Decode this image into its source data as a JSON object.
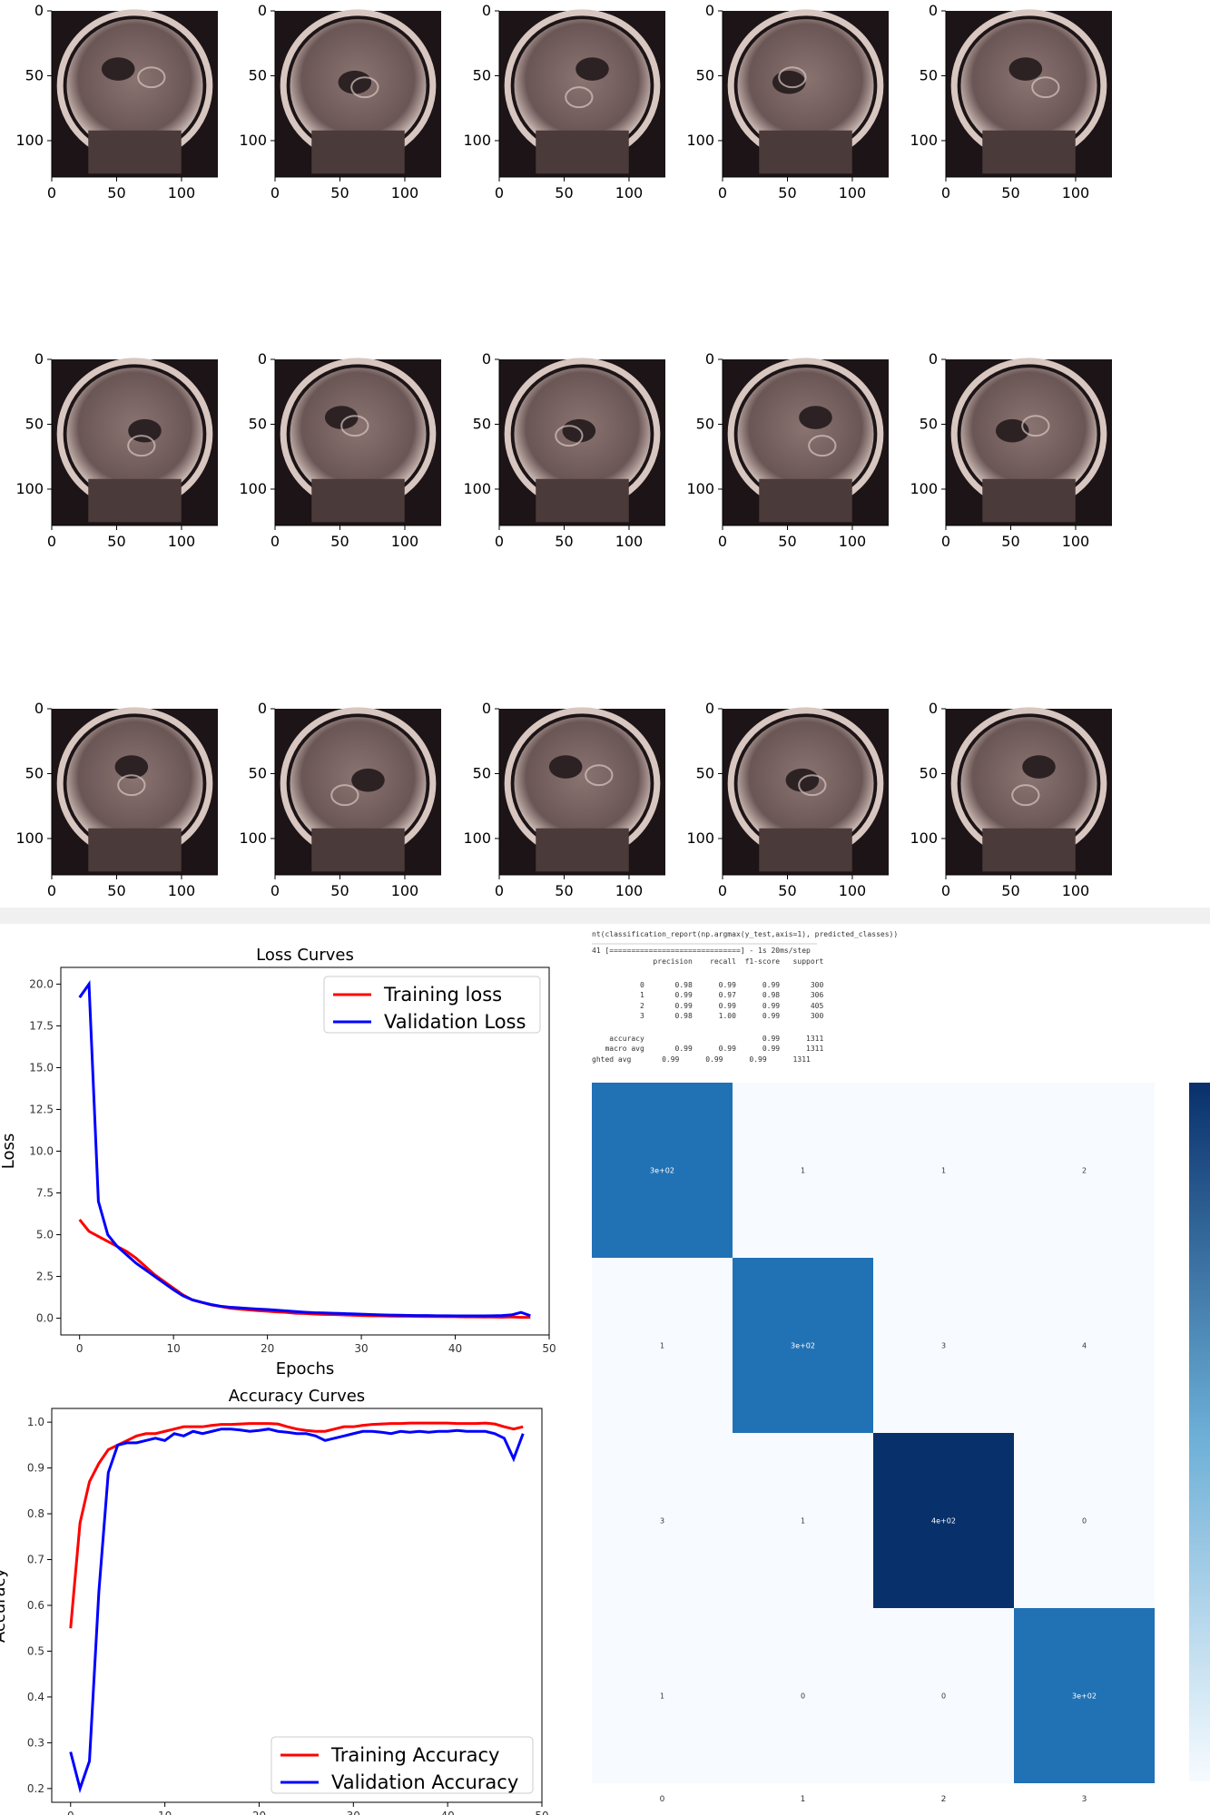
{
  "mri_grid": {
    "rows": 3,
    "cols": 5,
    "axis_ticks_x": [
      "0",
      "50",
      "100"
    ],
    "axis_ticks_y": [
      "0",
      "50",
      "100"
    ],
    "image_colors": {
      "dark": "#1c1416",
      "tissue": "#8a7472",
      "bright": "#d8c6c0"
    }
  },
  "notebook": {
    "code_line": "nt(classification_report(np.argmax(y_test,axis=1), predicted_classes))",
    "progress_line": "41 [==============================] - 1s 20ms/step",
    "report_header": "              precision    recall  f1-score   support",
    "report_rows": [
      "           0       0.98      0.99      0.99       300",
      "           1       0.99      0.97      0.98       306",
      "           2       0.99      0.99      0.99       405",
      "           3       0.98      1.00      0.99       300"
    ],
    "report_blank": "",
    "report_summary": [
      "    accuracy                           0.99      1311",
      "   macro avg       0.99      0.99      0.99      1311",
      "ghted avg       0.99      0.99      0.99      1311"
    ]
  },
  "chart_data": [
    {
      "type": "line",
      "title": "Loss Curves",
      "xlabel": "Epochs",
      "ylabel": "Loss",
      "xlim": [
        -2,
        50
      ],
      "ylim": [
        -1,
        21
      ],
      "xticks": [
        0,
        10,
        20,
        30,
        40,
        50
      ],
      "yticks": [
        0.0,
        2.5,
        5.0,
        7.5,
        10.0,
        12.5,
        15.0,
        17.5,
        20.0
      ],
      "legend": "top-right",
      "grid": false,
      "series": [
        {
          "name": "Training loss",
          "color": "#ff0000",
          "x": [
            0,
            1,
            2,
            3,
            4,
            5,
            6,
            7,
            8,
            9,
            10,
            11,
            12,
            13,
            14,
            15,
            16,
            17,
            18,
            19,
            20,
            21,
            22,
            23,
            24,
            25,
            26,
            27,
            28,
            29,
            30,
            31,
            32,
            33,
            34,
            35,
            36,
            37,
            38,
            39,
            40,
            41,
            42,
            43,
            44,
            45,
            46,
            47,
            48
          ],
          "y": [
            5.9,
            5.2,
            4.9,
            4.6,
            4.3,
            4.0,
            3.6,
            3.1,
            2.6,
            2.2,
            1.8,
            1.4,
            1.1,
            0.95,
            0.8,
            0.7,
            0.6,
            0.55,
            0.5,
            0.45,
            0.42,
            0.38,
            0.35,
            0.3,
            0.28,
            0.25,
            0.23,
            0.22,
            0.2,
            0.18,
            0.16,
            0.15,
            0.14,
            0.13,
            0.12,
            0.12,
            0.11,
            0.1,
            0.1,
            0.09,
            0.09,
            0.08,
            0.08,
            0.07,
            0.07,
            0.06,
            0.08,
            0.05,
            0.05
          ]
        },
        {
          "name": "Validation Loss",
          "color": "#0000ff",
          "x": [
            0,
            1,
            2,
            3,
            4,
            5,
            6,
            7,
            8,
            9,
            10,
            11,
            12,
            13,
            14,
            15,
            16,
            17,
            18,
            19,
            20,
            21,
            22,
            23,
            24,
            25,
            26,
            27,
            28,
            29,
            30,
            31,
            32,
            33,
            34,
            35,
            36,
            37,
            38,
            39,
            40,
            41,
            42,
            43,
            44,
            45,
            46,
            47,
            48
          ],
          "y": [
            19.2,
            20.0,
            7.0,
            5.0,
            4.3,
            3.8,
            3.3,
            2.9,
            2.5,
            2.1,
            1.7,
            1.35,
            1.1,
            0.95,
            0.82,
            0.72,
            0.66,
            0.62,
            0.58,
            0.55,
            0.52,
            0.48,
            0.44,
            0.4,
            0.36,
            0.33,
            0.32,
            0.3,
            0.28,
            0.26,
            0.24,
            0.22,
            0.2,
            0.19,
            0.18,
            0.17,
            0.16,
            0.16,
            0.15,
            0.15,
            0.14,
            0.14,
            0.14,
            0.14,
            0.15,
            0.16,
            0.2,
            0.35,
            0.15
          ]
        }
      ]
    },
    {
      "type": "line",
      "title": "Accuracy Curves",
      "xlabel": "Epochs",
      "ylabel": "Accuracy",
      "xlim": [
        -2,
        50
      ],
      "ylim": [
        0.17,
        1.03
      ],
      "xticks": [
        0,
        10,
        20,
        30,
        40,
        50
      ],
      "yticks": [
        0.2,
        0.3,
        0.4,
        0.5,
        0.6,
        0.7,
        0.8,
        0.9,
        1.0
      ],
      "legend": "bottom-right",
      "grid": false,
      "series": [
        {
          "name": "Training Accuracy",
          "color": "#ff0000",
          "x": [
            0,
            1,
            2,
            3,
            4,
            5,
            6,
            7,
            8,
            9,
            10,
            11,
            12,
            13,
            14,
            15,
            16,
            17,
            18,
            19,
            20,
            21,
            22,
            23,
            24,
            25,
            26,
            27,
            28,
            29,
            30,
            31,
            32,
            33,
            34,
            35,
            36,
            37,
            38,
            39,
            40,
            41,
            42,
            43,
            44,
            45,
            46,
            47,
            48
          ],
          "y": [
            0.55,
            0.78,
            0.87,
            0.91,
            0.94,
            0.95,
            0.96,
            0.97,
            0.975,
            0.975,
            0.98,
            0.985,
            0.99,
            0.99,
            0.99,
            0.993,
            0.995,
            0.995,
            0.996,
            0.997,
            0.997,
            0.997,
            0.996,
            0.99,
            0.985,
            0.982,
            0.98,
            0.98,
            0.985,
            0.99,
            0.99,
            0.993,
            0.995,
            0.996,
            0.997,
            0.997,
            0.998,
            0.998,
            0.998,
            0.998,
            0.998,
            0.997,
            0.997,
            0.997,
            0.998,
            0.996,
            0.99,
            0.985,
            0.99
          ]
        },
        {
          "name": "Validation Accuracy",
          "color": "#0000ff",
          "x": [
            0,
            1,
            2,
            3,
            4,
            5,
            6,
            7,
            8,
            9,
            10,
            11,
            12,
            13,
            14,
            15,
            16,
            17,
            18,
            19,
            20,
            21,
            22,
            23,
            24,
            25,
            26,
            27,
            28,
            29,
            30,
            31,
            32,
            33,
            34,
            35,
            36,
            37,
            38,
            39,
            40,
            41,
            42,
            43,
            44,
            45,
            46,
            47,
            48
          ],
          "y": [
            0.28,
            0.2,
            0.26,
            0.63,
            0.89,
            0.95,
            0.955,
            0.955,
            0.96,
            0.965,
            0.96,
            0.975,
            0.97,
            0.98,
            0.975,
            0.98,
            0.985,
            0.985,
            0.983,
            0.98,
            0.982,
            0.985,
            0.98,
            0.978,
            0.975,
            0.975,
            0.97,
            0.96,
            0.965,
            0.97,
            0.975,
            0.98,
            0.98,
            0.978,
            0.975,
            0.98,
            0.978,
            0.98,
            0.978,
            0.98,
            0.98,
            0.982,
            0.98,
            0.98,
            0.98,
            0.975,
            0.965,
            0.92,
            0.975
          ]
        }
      ]
    },
    {
      "type": "heatmap",
      "title": "",
      "xticks": [
        "0",
        "1",
        "2",
        "3"
      ],
      "yticks": [
        "0",
        "1",
        "2",
        "3"
      ],
      "values": [
        [
          300,
          1,
          1,
          2
        ],
        [
          1,
          300,
          3,
          4
        ],
        [
          3,
          1,
          400,
          0
        ],
        [
          1,
          0,
          0,
          300
        ]
      ],
      "labels": [
        [
          "3e+02",
          "1",
          "1",
          "2"
        ],
        [
          "1",
          "3e+02",
          "3",
          "4"
        ],
        [
          "3",
          "1",
          "4e+02",
          "0"
        ],
        [
          "1",
          "0",
          "0",
          "3e+02"
        ]
      ],
      "colormap": "Blues",
      "colorbar": true
    }
  ]
}
